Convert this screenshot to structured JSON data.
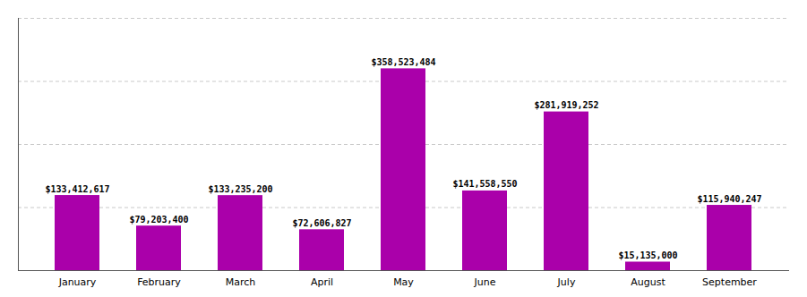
{
  "chart_data": {
    "type": "bar",
    "categories": [
      "January",
      "February",
      "March",
      "April",
      "May",
      "June",
      "July",
      "August",
      "September"
    ],
    "values": [
      133412617,
      79203400,
      133235200,
      72606827,
      358523484,
      141558550,
      281919252,
      15135000,
      115940247
    ],
    "value_labels": [
      "$133,412,617",
      "$79,203,400",
      "$133,235,200",
      "$72,606,827",
      "$358,523,484",
      "$141,558,550",
      "$281,919,252",
      "$15,135,000",
      "$115,940,247"
    ],
    "color": "#aa00aa",
    "ylim": [
      0,
      448154355
    ],
    "yticks": [
      0,
      112038588.75,
      224077177.5,
      336115766.25,
      448154355
    ],
    "grid": true,
    "data_labels": true,
    "tick_labels": "x"
  }
}
